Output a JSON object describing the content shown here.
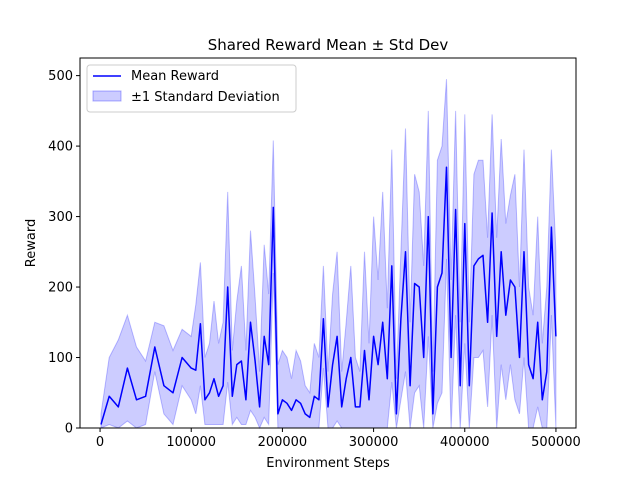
{
  "chart_data": {
    "type": "line",
    "title": "Shared Reward Mean ± Std Dev",
    "xlabel": "Environment Steps",
    "ylabel": "Reward",
    "xlim": [
      -22000,
      522000
    ],
    "ylim": [
      0,
      525
    ],
    "xticks": [
      0,
      100000,
      200000,
      300000,
      400000,
      500000
    ],
    "yticks": [
      0,
      100,
      200,
      300,
      400,
      500
    ],
    "legend": {
      "position": "top-left",
      "entries": [
        {
          "label": "Mean Reward",
          "kind": "line",
          "color": "#0000ff"
        },
        {
          "label": "±1 Standard Deviation",
          "kind": "band",
          "color": "#0000ff"
        }
      ]
    },
    "colors": {
      "line": "#0000ff",
      "band": "#0000ff"
    },
    "series": [
      {
        "name": "Mean Reward",
        "x": [
          1000,
          10000,
          20000,
          30000,
          40000,
          50000,
          60000,
          70000,
          80000,
          90000,
          100000,
          105000,
          110000,
          115000,
          120000,
          125000,
          130000,
          135000,
          140000,
          145000,
          150000,
          155000,
          160000,
          165000,
          170000,
          175000,
          180000,
          185000,
          190000,
          195000,
          200000,
          205000,
          210000,
          215000,
          220000,
          225000,
          230000,
          235000,
          240000,
          245000,
          250000,
          255000,
          260000,
          265000,
          270000,
          275000,
          280000,
          285000,
          290000,
          295000,
          300000,
          305000,
          310000,
          315000,
          320000,
          325000,
          330000,
          335000,
          340000,
          345000,
          350000,
          355000,
          360000,
          365000,
          370000,
          375000,
          380000,
          385000,
          390000,
          395000,
          400000,
          405000,
          410000,
          415000,
          420000,
          425000,
          430000,
          435000,
          440000,
          445000,
          450000,
          455000,
          460000,
          465000,
          470000,
          475000,
          480000,
          485000,
          490000,
          495000,
          500000
        ],
        "y": [
          5,
          45,
          30,
          85,
          40,
          45,
          115,
          60,
          50,
          100,
          85,
          82,
          148,
          40,
          50,
          70,
          45,
          60,
          200,
          45,
          90,
          95,
          40,
          150,
          95,
          30,
          130,
          90,
          313,
          20,
          40,
          35,
          25,
          40,
          35,
          20,
          15,
          45,
          40,
          155,
          30,
          90,
          130,
          30,
          70,
          100,
          30,
          30,
          110,
          40,
          130,
          90,
          150,
          70,
          230,
          20,
          155,
          250,
          60,
          205,
          200,
          100,
          300,
          20,
          200,
          220,
          370,
          100,
          310,
          60,
          290,
          60,
          230,
          240,
          245,
          150,
          305,
          130,
          250,
          160,
          210,
          200,
          100,
          250,
          90,
          70,
          150,
          40,
          80,
          285,
          130
        ]
      },
      {
        "name": "±1 Standard Deviation",
        "x": [
          1000,
          10000,
          20000,
          30000,
          40000,
          50000,
          60000,
          70000,
          80000,
          90000,
          100000,
          105000,
          110000,
          115000,
          120000,
          125000,
          130000,
          135000,
          140000,
          145000,
          150000,
          155000,
          160000,
          165000,
          170000,
          175000,
          180000,
          185000,
          190000,
          195000,
          200000,
          205000,
          210000,
          215000,
          220000,
          225000,
          230000,
          235000,
          240000,
          245000,
          250000,
          255000,
          260000,
          265000,
          270000,
          275000,
          280000,
          285000,
          290000,
          295000,
          300000,
          305000,
          310000,
          315000,
          320000,
          325000,
          330000,
          335000,
          340000,
          345000,
          350000,
          355000,
          360000,
          365000,
          370000,
          375000,
          380000,
          385000,
          390000,
          395000,
          400000,
          405000,
          410000,
          415000,
          420000,
          425000,
          430000,
          435000,
          440000,
          445000,
          450000,
          455000,
          460000,
          465000,
          470000,
          475000,
          480000,
          485000,
          490000,
          495000,
          500000
        ],
        "upper": [
          20,
          100,
          125,
          160,
          115,
          95,
          150,
          145,
          110,
          140,
          130,
          175,
          235,
          100,
          120,
          180,
          120,
          150,
          335,
          110,
          180,
          230,
          110,
          280,
          185,
          80,
          260,
          190,
          408,
          90,
          110,
          100,
          70,
          110,
          95,
          60,
          50,
          120,
          100,
          230,
          80,
          190,
          250,
          80,
          150,
          230,
          100,
          80,
          250,
          120,
          300,
          210,
          335,
          170,
          395,
          70,
          250,
          425,
          150,
          360,
          335,
          230,
          450,
          80,
          380,
          400,
          495,
          210,
          450,
          150,
          445,
          150,
          360,
          380,
          380,
          270,
          445,
          270,
          410,
          290,
          330,
          360,
          200,
          395,
          200,
          160,
          300,
          120,
          200,
          395,
          250
        ],
        "lower": [
          0,
          5,
          0,
          10,
          0,
          5,
          80,
          20,
          5,
          60,
          40,
          20,
          60,
          5,
          5,
          5,
          5,
          5,
          65,
          5,
          15,
          5,
          5,
          25,
          15,
          0,
          15,
          5,
          220,
          0,
          0,
          0,
          0,
          0,
          0,
          0,
          0,
          0,
          0,
          85,
          0,
          0,
          10,
          0,
          0,
          0,
          0,
          0,
          0,
          0,
          0,
          0,
          0,
          0,
          65,
          0,
          40,
          80,
          0,
          50,
          60,
          0,
          130,
          0,
          35,
          50,
          240,
          0,
          160,
          0,
          120,
          0,
          100,
          100,
          110,
          30,
          160,
          0,
          90,
          40,
          90,
          40,
          20,
          100,
          0,
          0,
          30,
          0,
          0,
          160,
          0
        ]
      }
    ]
  }
}
